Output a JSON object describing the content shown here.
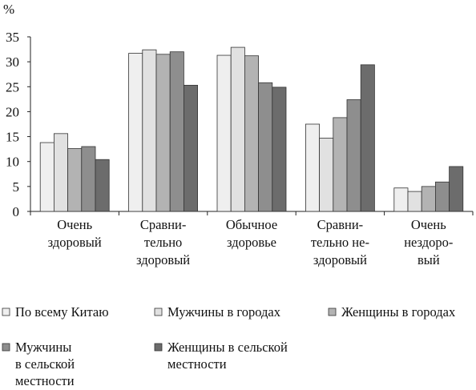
{
  "chart_data": {
    "type": "bar",
    "ylabel": "%",
    "ylim": [
      0,
      35
    ],
    "yticks": [
      "0",
      "5",
      "10",
      "15",
      "20",
      "25",
      "30",
      "35"
    ],
    "grid": false,
    "legend_position": "bottom",
    "categories": [
      [
        "Очень",
        "здоровый"
      ],
      [
        "Сравни-",
        "тельно",
        "здоровый"
      ],
      [
        "Обычное",
        "здоровье"
      ],
      [
        "Сравни-",
        "тельно не-",
        "здоровый"
      ],
      [
        "Очень",
        "нездоро-",
        "вый"
      ]
    ],
    "series": [
      {
        "name": [
          "По всему Китаю"
        ],
        "color": "#efefef",
        "values": [
          13.8,
          31.7,
          31.3,
          17.5,
          4.7
        ]
      },
      {
        "name": [
          "Мужчины в городах"
        ],
        "color": "#e1e1e1",
        "values": [
          15.6,
          32.4,
          32.9,
          14.7,
          4.0
        ]
      },
      {
        "name": [
          "Женщины в городах"
        ],
        "color": "#b3b3b3",
        "values": [
          12.6,
          31.5,
          31.2,
          18.8,
          5.0
        ]
      },
      {
        "name": [
          "Мужчины",
          "в сельской",
          "местности"
        ],
        "color": "#8e8e8e",
        "values": [
          13.0,
          32.0,
          25.8,
          22.4,
          5.9
        ]
      },
      {
        "name": [
          "Женщины в сельской",
          "местности"
        ],
        "color": "#6c6c6c",
        "values": [
          10.4,
          25.3,
          24.9,
          29.4,
          9.0
        ]
      }
    ]
  }
}
